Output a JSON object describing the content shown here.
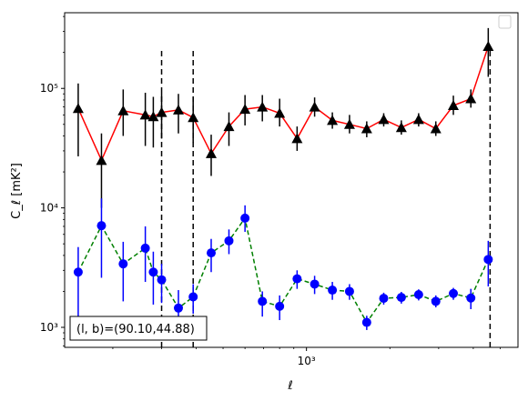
{
  "chart_data": {
    "type": "line",
    "xscale": "log",
    "yscale": "log",
    "xlim": [
      134,
      5800
    ],
    "ylim": [
      680,
      430000
    ],
    "xlabel": "ℓ",
    "ylabel": "C_ℓ  [mK²]",
    "x_tick_labels": [
      {
        "value": 1000,
        "label": "10³"
      }
    ],
    "y_tick_labels": [
      {
        "value": 1000,
        "label": "10³"
      },
      {
        "value": 10000,
        "label": "10⁴"
      },
      {
        "value": 100000,
        "label": "10⁵"
      }
    ],
    "legend": {
      "placement": "top-right",
      "entries": []
    },
    "annotation": "(l, b)=(90.10,44.88)",
    "vlines": {
      "x": [
        300,
        390,
        4600
      ],
      "ymin": 680,
      "ymax": 220000
    },
    "series": [
      {
        "color": "#ff0000",
        "marker": "triangle",
        "marker_color": "#000000",
        "errorbar_color": "#000000",
        "line_style": "solid",
        "x": [
          150,
          182,
          218,
          262,
          280,
          300,
          345,
          390,
          453,
          525,
          600,
          693,
          800,
          925,
          1070,
          1240,
          1430,
          1650,
          1900,
          2200,
          2540,
          2930,
          3390,
          3920,
          4530,
          5240,
          5600
        ],
        "y": [
          68000,
          25000,
          65000,
          60000,
          58000,
          63000,
          66000,
          57000,
          28500,
          48000,
          67000,
          70000,
          62000,
          38000,
          70000,
          54000,
          50000,
          46000,
          55000,
          47000,
          55000,
          46000,
          72000,
          82000,
          225000,
          0,
          0
        ],
        "ylo": [
          27000,
          10000,
          40000,
          33000,
          32000,
          38000,
          42000,
          35000,
          18500,
          33000,
          49000,
          53000,
          48000,
          30000,
          58000,
          46000,
          42000,
          39000,
          48000,
          41000,
          48000,
          40000,
          60000,
          69000,
          125000,
          0,
          0
        ],
        "yhi": [
          110000,
          42000,
          98000,
          92000,
          85000,
          92000,
          90000,
          85000,
          41000,
          63000,
          88000,
          88000,
          82000,
          48000,
          84000,
          63000,
          60000,
          53000,
          62000,
          54000,
          62000,
          53000,
          87000,
          98000,
          320000,
          0,
          0
        ]
      },
      {
        "color": "#008000",
        "marker": "circle",
        "marker_color": "#0000ff",
        "errorbar_color": "#0000ff",
        "line_style": "dashed",
        "x": [
          150,
          182,
          218,
          262,
          280,
          300,
          345,
          390,
          453,
          525,
          600,
          693,
          800,
          925,
          1070,
          1240,
          1430,
          1650,
          1900,
          2200,
          2540,
          2930,
          3390,
          3920,
          4530,
          5240
        ],
        "y": [
          2900,
          7100,
          3400,
          4600,
          2900,
          2500,
          1450,
          1800,
          4200,
          5300,
          8200,
          1650,
          1500,
          2550,
          2300,
          2050,
          2000,
          1100,
          1750,
          1780,
          1880,
          1650,
          1920,
          1760,
          3700,
          0
        ],
        "ylo": [
          1000,
          2600,
          1650,
          2400,
          1550,
          1600,
          950,
          1300,
          2900,
          4100,
          6300,
          1230,
          1150,
          2100,
          1900,
          1700,
          1700,
          950,
          1550,
          1580,
          1680,
          1470,
          1700,
          1420,
          2200,
          0
        ],
        "yhi": [
          4700,
          12000,
          5200,
          7000,
          4300,
          3400,
          2050,
          2300,
          5500,
          6600,
          10500,
          2000,
          1850,
          3000,
          2700,
          2400,
          2300,
          1250,
          1950,
          1980,
          2080,
          1850,
          2140,
          2100,
          5300,
          0
        ]
      }
    ]
  }
}
